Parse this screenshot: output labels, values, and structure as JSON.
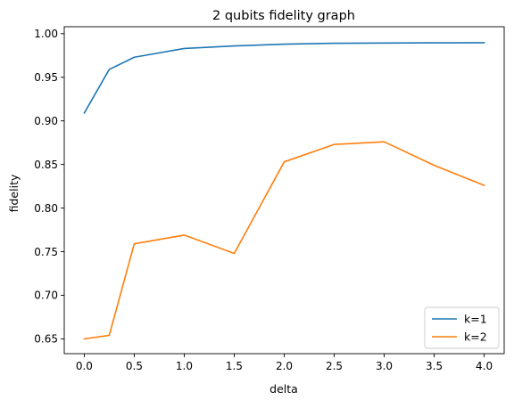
{
  "chart_data": {
    "type": "line",
    "title": "2 qubits fidelity graph",
    "xlabel": "delta",
    "ylabel": "fidelity",
    "xlim": [
      -0.2,
      4.2
    ],
    "ylim": [
      0.633,
      1.008
    ],
    "xticks": [
      0.0,
      0.5,
      1.0,
      1.5,
      2.0,
      2.5,
      3.0,
      3.5,
      4.0
    ],
    "xtick_labels": [
      "0.0",
      "0.5",
      "1.0",
      "1.5",
      "2.0",
      "2.5",
      "3.0",
      "3.5",
      "4.0"
    ],
    "yticks": [
      0.65,
      0.7,
      0.75,
      0.8,
      0.85,
      0.9,
      0.95,
      1.0
    ],
    "ytick_labels": [
      "0.65",
      "0.70",
      "0.75",
      "0.80",
      "0.85",
      "0.90",
      "0.95",
      "1.00"
    ],
    "grid": false,
    "legend_position": "bottom-right",
    "series": [
      {
        "name": "k=1",
        "color": "#1f77b4",
        "x": [
          0.0,
          0.25,
          0.5,
          1.0,
          1.5,
          2.0,
          2.5,
          3.0,
          3.5,
          4.0
        ],
        "y": [
          0.909,
          0.959,
          0.973,
          0.983,
          0.986,
          0.988,
          0.989,
          0.9893,
          0.9895,
          0.9897
        ]
      },
      {
        "name": "k=2",
        "color": "#ff7f0e",
        "x": [
          0.0,
          0.25,
          0.5,
          1.0,
          1.5,
          2.0,
          2.5,
          3.0,
          3.5,
          4.0
        ],
        "y": [
          0.65,
          0.654,
          0.759,
          0.769,
          0.748,
          0.853,
          0.873,
          0.876,
          0.849,
          0.826
        ]
      }
    ]
  }
}
